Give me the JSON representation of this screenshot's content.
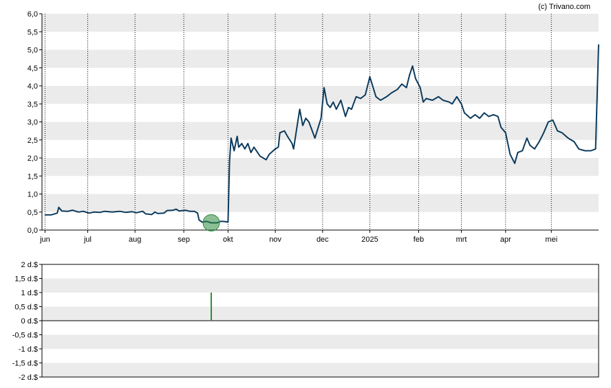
{
  "credit": "(c) Trivano.com",
  "colors": {
    "line": "#0b3a5c",
    "band": "#ebebeb",
    "grid": "#000000",
    "marker": "#2e8b3e",
    "bar": "#2e8b3e"
  },
  "chart_data": [
    {
      "type": "line",
      "title": "",
      "xlabel": "",
      "ylabel": "",
      "ylim": [
        0,
        6.0
      ],
      "y_ticks": [
        "0,0",
        "0,5",
        "1,0",
        "1,5",
        "2,0",
        "2,5",
        "3,0",
        "3,5",
        "4,0",
        "4,5",
        "5,0",
        "5,5",
        "6,0"
      ],
      "month_ticks": [
        {
          "label": "jun",
          "date": "2024-06-03"
        },
        {
          "label": "jul",
          "date": "2024-07-01"
        },
        {
          "label": "aug",
          "date": "2024-08-01"
        },
        {
          "label": "sep",
          "date": "2024-09-02"
        },
        {
          "label": "okt",
          "date": "2024-10-01"
        },
        {
          "label": "nov",
          "date": "2024-11-01"
        },
        {
          "label": "dec",
          "date": "2024-12-02"
        },
        {
          "label": "2025",
          "date": "2025-01-02"
        },
        {
          "label": "feb",
          "date": "2025-02-03"
        },
        {
          "label": "mrt",
          "date": "2025-03-03"
        },
        {
          "label": "apr",
          "date": "2025-04-01"
        },
        {
          "label": "mei",
          "date": "2025-05-01"
        }
      ],
      "grid": "vertical dotted at months, horizontal bands",
      "marker": {
        "date": "2024-09-20",
        "value": 0.2
      },
      "series": [
        {
          "values": [
            [
              "2024-06-03",
              0.42
            ],
            [
              "2024-06-07",
              0.42
            ],
            [
              "2024-06-11",
              0.47
            ],
            [
              "2024-06-12",
              0.63
            ],
            [
              "2024-06-14",
              0.53
            ],
            [
              "2024-06-18",
              0.52
            ],
            [
              "2024-06-21",
              0.55
            ],
            [
              "2024-06-25",
              0.5
            ],
            [
              "2024-06-28",
              0.52
            ],
            [
              "2024-07-02",
              0.47
            ],
            [
              "2024-07-05",
              0.5
            ],
            [
              "2024-07-09",
              0.49
            ],
            [
              "2024-07-12",
              0.52
            ],
            [
              "2024-07-17",
              0.5
            ],
            [
              "2024-07-22",
              0.52
            ],
            [
              "2024-07-26",
              0.49
            ],
            [
              "2024-07-30",
              0.51
            ],
            [
              "2024-08-02",
              0.48
            ],
            [
              "2024-08-06",
              0.52
            ],
            [
              "2024-08-08",
              0.45
            ],
            [
              "2024-08-12",
              0.43
            ],
            [
              "2024-08-14",
              0.5
            ],
            [
              "2024-08-16",
              0.46
            ],
            [
              "2024-08-20",
              0.47
            ],
            [
              "2024-08-22",
              0.54
            ],
            [
              "2024-08-26",
              0.55
            ],
            [
              "2024-08-28",
              0.58
            ],
            [
              "2024-08-30",
              0.53
            ],
            [
              "2024-09-03",
              0.55
            ],
            [
              "2024-09-06",
              0.52
            ],
            [
              "2024-09-09",
              0.52
            ],
            [
              "2024-09-11",
              0.47
            ],
            [
              "2024-09-12",
              0.28
            ],
            [
              "2024-09-14",
              0.22
            ],
            [
              "2024-09-17",
              0.24
            ],
            [
              "2024-09-20",
              0.2
            ],
            [
              "2024-09-24",
              0.2
            ],
            [
              "2024-09-26",
              0.24
            ],
            [
              "2024-09-28",
              0.24
            ],
            [
              "2024-10-01",
              0.22
            ],
            [
              "2024-10-02",
              1.9
            ],
            [
              "2024-10-03",
              2.55
            ],
            [
              "2024-10-05",
              2.2
            ],
            [
              "2024-10-07",
              2.6
            ],
            [
              "2024-10-08",
              2.3
            ],
            [
              "2024-10-10",
              2.4
            ],
            [
              "2024-10-12",
              2.25
            ],
            [
              "2024-10-14",
              2.4
            ],
            [
              "2024-10-16",
              2.15
            ],
            [
              "2024-10-18",
              2.3
            ],
            [
              "2024-10-22",
              2.05
            ],
            [
              "2024-10-26",
              1.95
            ],
            [
              "2024-10-28",
              2.1
            ],
            [
              "2024-11-01",
              2.25
            ],
            [
              "2024-11-03",
              2.3
            ],
            [
              "2024-11-04",
              2.7
            ],
            [
              "2024-11-07",
              2.75
            ],
            [
              "2024-11-09",
              2.6
            ],
            [
              "2024-11-12",
              2.4
            ],
            [
              "2024-11-13",
              2.25
            ],
            [
              "2024-11-15",
              2.8
            ],
            [
              "2024-11-17",
              3.35
            ],
            [
              "2024-11-19",
              2.9
            ],
            [
              "2024-11-21",
              3.1
            ],
            [
              "2024-11-23",
              3.0
            ],
            [
              "2024-11-27",
              2.55
            ],
            [
              "2024-12-01",
              3.1
            ],
            [
              "2024-12-03",
              3.95
            ],
            [
              "2024-12-05",
              3.5
            ],
            [
              "2024-12-07",
              3.4
            ],
            [
              "2024-12-09",
              3.55
            ],
            [
              "2024-12-11",
              3.35
            ],
            [
              "2024-12-14",
              3.6
            ],
            [
              "2024-12-17",
              3.15
            ],
            [
              "2024-12-19",
              3.4
            ],
            [
              "2024-12-21",
              3.35
            ],
            [
              "2024-12-24",
              3.7
            ],
            [
              "2024-12-27",
              3.65
            ],
            [
              "2024-12-30",
              3.75
            ],
            [
              "2025-01-02",
              4.25
            ],
            [
              "2025-01-06",
              3.7
            ],
            [
              "2025-01-09",
              3.6
            ],
            [
              "2025-01-13",
              3.7
            ],
            [
              "2025-01-16",
              3.8
            ],
            [
              "2025-01-20",
              3.9
            ],
            [
              "2025-01-23",
              4.05
            ],
            [
              "2025-01-26",
              3.95
            ],
            [
              "2025-01-28",
              4.3
            ],
            [
              "2025-01-30",
              4.55
            ],
            [
              "2025-02-01",
              4.2
            ],
            [
              "2025-02-04",
              3.95
            ],
            [
              "2025-02-06",
              3.55
            ],
            [
              "2025-02-08",
              3.65
            ],
            [
              "2025-02-12",
              3.6
            ],
            [
              "2025-02-16",
              3.7
            ],
            [
              "2025-02-19",
              3.6
            ],
            [
              "2025-02-23",
              3.55
            ],
            [
              "2025-02-25",
              3.5
            ],
            [
              "2025-02-28",
              3.7
            ],
            [
              "2025-03-03",
              3.5
            ],
            [
              "2025-03-05",
              3.25
            ],
            [
              "2025-03-09",
              3.1
            ],
            [
              "2025-03-12",
              3.2
            ],
            [
              "2025-03-15",
              3.1
            ],
            [
              "2025-03-18",
              3.25
            ],
            [
              "2025-03-21",
              3.15
            ],
            [
              "2025-03-24",
              3.2
            ],
            [
              "2025-03-27",
              3.15
            ],
            [
              "2025-03-29",
              2.85
            ],
            [
              "2025-04-01",
              2.7
            ],
            [
              "2025-04-04",
              2.1
            ],
            [
              "2025-04-07",
              1.85
            ],
            [
              "2025-04-09",
              2.15
            ],
            [
              "2025-04-12",
              2.2
            ],
            [
              "2025-04-15",
              2.55
            ],
            [
              "2025-04-17",
              2.35
            ],
            [
              "2025-04-20",
              2.25
            ],
            [
              "2025-04-23",
              2.45
            ],
            [
              "2025-04-26",
              2.7
            ],
            [
              "2025-04-29",
              3.0
            ],
            [
              "2025-05-02",
              3.05
            ],
            [
              "2025-05-05",
              2.75
            ],
            [
              "2025-05-08",
              2.7
            ],
            [
              "2025-05-12",
              2.55
            ],
            [
              "2025-05-16",
              2.45
            ],
            [
              "2025-05-19",
              2.25
            ],
            [
              "2025-05-23",
              2.2
            ],
            [
              "2025-05-27",
              2.2
            ],
            [
              "2025-05-30",
              2.25
            ],
            [
              "2025-06-01",
              5.15
            ]
          ]
        }
      ]
    },
    {
      "type": "bar",
      "title": "",
      "xlabel": "",
      "ylabel": "",
      "ylim": [
        -2,
        2
      ],
      "y_ticks": [
        "2 d.$",
        "1,5 d.$",
        "1 d.$",
        "0,5 d.$",
        "0 d.$",
        "-0,5 d.$",
        "-1 d.$",
        "-1,5 d.$",
        "-2 d.$"
      ],
      "grid": "horizontal bands, zero line",
      "series": [
        {
          "values": [
            [
              "2024-09-20",
              1.0
            ]
          ]
        }
      ]
    }
  ]
}
